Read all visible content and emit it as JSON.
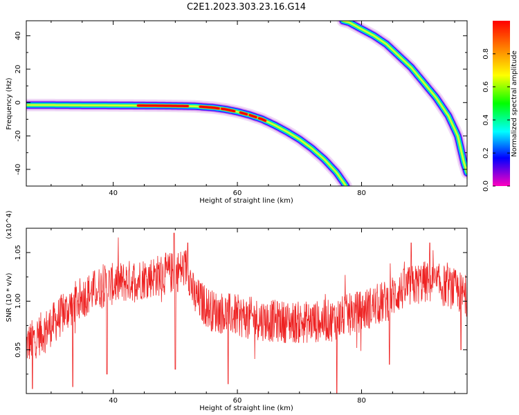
{
  "figure_title": "C2E1.2023.303.23.16.G14",
  "chart_data": [
    {
      "type": "heatmap",
      "xlabel": "Height of straight line (km)",
      "ylabel": "Frequency (Hz)",
      "xlim": [
        26,
        97
      ],
      "ylim": [
        -50,
        49
      ],
      "x_ticks": [
        40,
        60,
        80
      ],
      "x_tick_labels": [
        "40",
        "60",
        "80"
      ],
      "y_ticks": [
        -40,
        -20,
        0,
        20,
        40
      ],
      "y_tick_labels": [
        "-40",
        "-20",
        "0",
        "20",
        "40"
      ],
      "colormap": "hsv (red → magenta)",
      "colorbar": {
        "label": "Normalized spectral amplitude",
        "range": [
          0,
          1
        ],
        "ticks": [
          0.0,
          0.2,
          0.4,
          0.6,
          0.8
        ],
        "tick_labels": [
          "0.0",
          "0.2",
          "0.4",
          "0.6",
          "0.8"
        ]
      },
      "traces": [
        {
          "points": [
            [
              26,
              -1.5
            ],
            [
              30,
              -1.5
            ],
            [
              35,
              -1.6
            ],
            [
              40,
              -1.7
            ],
            [
              45,
              -1.8
            ],
            [
              50,
              -2
            ],
            [
              53,
              -2.2
            ],
            [
              56,
              -3
            ],
            [
              58,
              -4
            ],
            [
              60,
              -5.5
            ],
            [
              62,
              -7.5
            ],
            [
              64,
              -10
            ],
            [
              66,
              -13.5
            ],
            [
              68,
              -17.5
            ],
            [
              70,
              -22
            ],
            [
              72,
              -27.5
            ],
            [
              74,
              -34
            ],
            [
              76,
              -42
            ],
            [
              77.5,
              -50
            ]
          ],
          "peak_segments": [
            [
              44,
              52
            ],
            [
              54,
              57
            ],
            [
              57.5,
              59.5
            ],
            [
              60.5,
              61.5
            ],
            [
              62,
              63
            ],
            [
              63.5,
              64.5
            ]
          ]
        },
        {
          "points": [
            [
              77,
              49
            ],
            [
              78,
              48
            ],
            [
              80,
              44
            ],
            [
              82,
              40
            ],
            [
              84,
              35
            ],
            [
              86,
              28
            ],
            [
              88,
              21
            ],
            [
              90,
              12
            ],
            [
              92,
              3
            ],
            [
              94,
              -8
            ],
            [
              95.5,
              -20
            ],
            [
              96.5,
              -36
            ],
            [
              97,
              -42
            ]
          ],
          "peak_segments": []
        }
      ],
      "grid": false
    },
    {
      "type": "line",
      "xlabel": "Height of straight line (km)",
      "ylabel": "SNR (10 * v/v)",
      "y_multiplier": "(x10^4)",
      "xlim": [
        26,
        97
      ],
      "ylim": [
        0.905,
        1.075
      ],
      "x_ticks": [
        40,
        60,
        80
      ],
      "x_tick_labels": [
        "40",
        "60",
        "80"
      ],
      "y_ticks": [
        0.95,
        1.0,
        1.05
      ],
      "y_tick_labels": [
        "0.95",
        "1.00",
        "1.05"
      ],
      "line_color": "#ee2222",
      "series": [
        {
          "trend": [
            [
              26,
              0.955
            ],
            [
              30,
              0.975
            ],
            [
              34,
              1.0
            ],
            [
              38,
              1.015
            ],
            [
              42,
              1.02
            ],
            [
              46,
              1.025
            ],
            [
              50,
              1.03
            ],
            [
              52,
              1.035
            ],
            [
              53,
              1.005
            ],
            [
              56,
              0.99
            ],
            [
              60,
              0.985
            ],
            [
              65,
              0.98
            ],
            [
              70,
              0.978
            ],
            [
              75,
              0.98
            ],
            [
              80,
              0.99
            ],
            [
              84,
              1.0
            ],
            [
              86,
              1.01
            ],
            [
              90,
              1.02
            ],
            [
              94,
              1.015
            ],
            [
              97,
              1.005
            ]
          ],
          "noise_amplitude": 0.022,
          "sample_count": 1400,
          "dips": [
            [
              27,
              0.91
            ],
            [
              33.5,
              0.912
            ],
            [
              39,
              0.925
            ],
            [
              50,
              0.93
            ],
            [
              58.5,
              0.915
            ],
            [
              76,
              0.905
            ],
            [
              84.5,
              0.935
            ],
            [
              96,
              0.95
            ]
          ],
          "spikes": [
            [
              49.8,
              1.07
            ],
            [
              52,
              1.06
            ],
            [
              88,
              1.06
            ],
            [
              91,
              1.06
            ]
          ]
        }
      ]
    }
  ]
}
